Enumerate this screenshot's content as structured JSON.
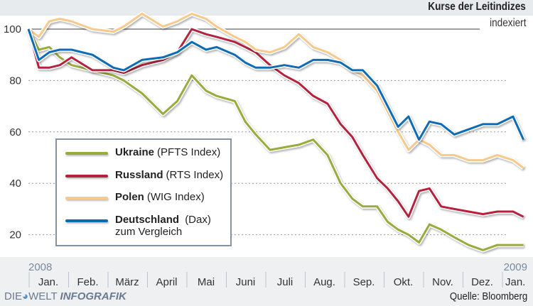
{
  "chart_data": {
    "type": "line",
    "title": "Kurse der Leitindizes",
    "subtitle": "indexiert",
    "ylim": [
      10,
      108
    ],
    "yticks": [
      100,
      80,
      60,
      40,
      20
    ],
    "grid": true,
    "legend_position": "bottom-left",
    "year_labels": [
      "2008",
      "2009"
    ],
    "months": [
      "Jan.",
      "Feb.",
      "März",
      "April",
      "Mai",
      "Juni",
      "Juli",
      "Aug.",
      "Sep.",
      "Okt.",
      "Nov.",
      "Dez.",
      "Jan."
    ],
    "x": [
      "2008-01-01",
      "2008-01-09",
      "2008-01-17",
      "2008-01-25",
      "2008-02-03",
      "2008-02-19",
      "2008-03-06",
      "2008-03-14",
      "2008-03-28",
      "2008-04-13",
      "2008-04-24",
      "2008-05-05",
      "2008-05-16",
      "2008-05-24",
      "2008-06-07",
      "2008-06-15",
      "2008-06-23",
      "2008-07-04",
      "2008-07-15",
      "2008-07-26",
      "2008-08-06",
      "2008-08-17",
      "2008-08-27",
      "2008-09-05",
      "2008-09-13",
      "2008-09-24",
      "2008-10-02",
      "2008-10-10",
      "2008-10-18",
      "2008-10-26",
      "2008-11-03",
      "2008-11-12",
      "2008-11-22",
      "2008-12-03",
      "2008-12-14",
      "2008-12-25",
      "2009-01-06",
      "2009-01-14"
    ],
    "series": [
      {
        "name": "Ukraine",
        "desc": "(PFTS Index)",
        "color": "#9aab3a",
        "values": [
          100,
          92,
          93,
          89,
          86,
          84,
          82,
          80,
          75,
          67,
          72,
          82,
          76,
          74,
          72,
          64,
          59,
          53,
          54,
          55,
          57,
          51,
          40,
          34,
          31,
          31,
          25,
          22,
          20,
          17,
          24,
          22,
          19,
          16,
          14,
          16,
          16,
          16
        ]
      },
      {
        "name": "Russland",
        "desc": "(RTS Index)",
        "color": "#b5213c",
        "values": [
          100,
          85,
          85,
          86,
          89,
          84,
          84,
          83,
          86,
          88,
          91,
          100,
          98,
          97,
          95,
          93,
          91,
          86,
          82,
          79,
          74,
          71,
          63,
          58,
          51,
          42,
          38,
          33,
          27,
          37,
          38,
          31,
          30,
          29,
          28,
          29,
          29,
          27
        ]
      },
      {
        "name": "Polen",
        "desc": "(WIG Index)",
        "color": "#f7c98a",
        "values": [
          100,
          97,
          103,
          104,
          103,
          100,
          99,
          101,
          106,
          101,
          103,
          106,
          104,
          101,
          97,
          95,
          92,
          91,
          93,
          98,
          93,
          91,
          88,
          84,
          82,
          76,
          68,
          60,
          53,
          57,
          55,
          51,
          51,
          49,
          49,
          51,
          49,
          46
        ]
      },
      {
        "name": "Deutschland",
        "desc": "(Dax)",
        "note": "zum Vergleich",
        "color": "#0a6cb5",
        "values": [
          100,
          88,
          91,
          92,
          92,
          90,
          85,
          84,
          88,
          89,
          91,
          95,
          92,
          93,
          90,
          87,
          85,
          85,
          86,
          85,
          88,
          88,
          87,
          84,
          84,
          78,
          70,
          62,
          66,
          57,
          64,
          63,
          59,
          61,
          63,
          63,
          66,
          57
        ]
      }
    ]
  },
  "footer": {
    "source": "Quelle: Bloomberg",
    "logo_die": "DIE",
    "logo_welt": "WELT",
    "logo_infografik": "INFOGRAFIK"
  }
}
